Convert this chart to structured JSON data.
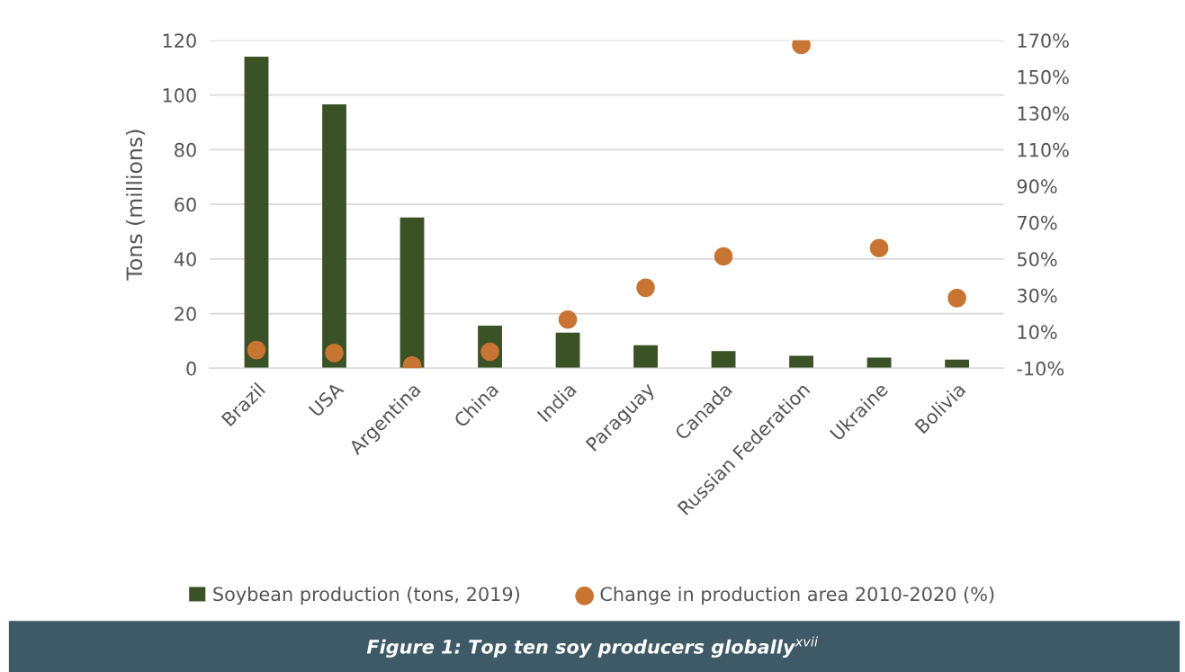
{
  "chart_data": {
    "type": "bar",
    "title": "Figure 1: Top ten soy producers globally$^{xvii}$",
    "ylabel": "Tons (millions)",
    "categories": [
      "Brazil",
      "USA",
      "Argentina",
      "China",
      "India",
      "Paraguay",
      "Canada",
      "Russian Federation",
      "Ukraine",
      "Bolivia"
    ],
    "series": [
      {
        "name": "Soybean production (tons, 2019)",
        "color": "#3a5226",
        "values": [
          114,
          96.6,
          55.2,
          15.6,
          13,
          8.4,
          6.3,
          4.6,
          3.9,
          3.2
        ]
      },
      {
        "name": "Change in production area 2010-2020 (%)",
        "type": "scatter",
        "axis": "y2",
        "color": "#c87533",
        "values": [
          0,
          -1.6,
          -8.5,
          -0.9,
          16.7,
          34.2,
          51.4,
          167.5,
          56,
          28.5
        ]
      }
    ],
    "ylim": [
      0,
      120
    ],
    "yticks": [
      0,
      20,
      40,
      60,
      80,
      100,
      120
    ],
    "y2lim": [
      -10,
      170
    ],
    "y2ticks": [
      {
        "value": -10,
        "label": "-10%"
      },
      {
        "value": 10,
        "label": "10%"
      },
      {
        "value": 30,
        "label": "30%"
      },
      {
        "value": 50,
        "label": "50%"
      },
      {
        "value": 70,
        "label": "70%"
      },
      {
        "value": 90,
        "label": "90%"
      },
      {
        "value": 110,
        "label": "110%"
      },
      {
        "value": 130,
        "label": "130%"
      },
      {
        "value": 150,
        "label": "150%"
      },
      {
        "value": 170,
        "label": "170%"
      }
    ],
    "grid": "y",
    "legend": "bottom",
    "marker": "circle"
  }
}
